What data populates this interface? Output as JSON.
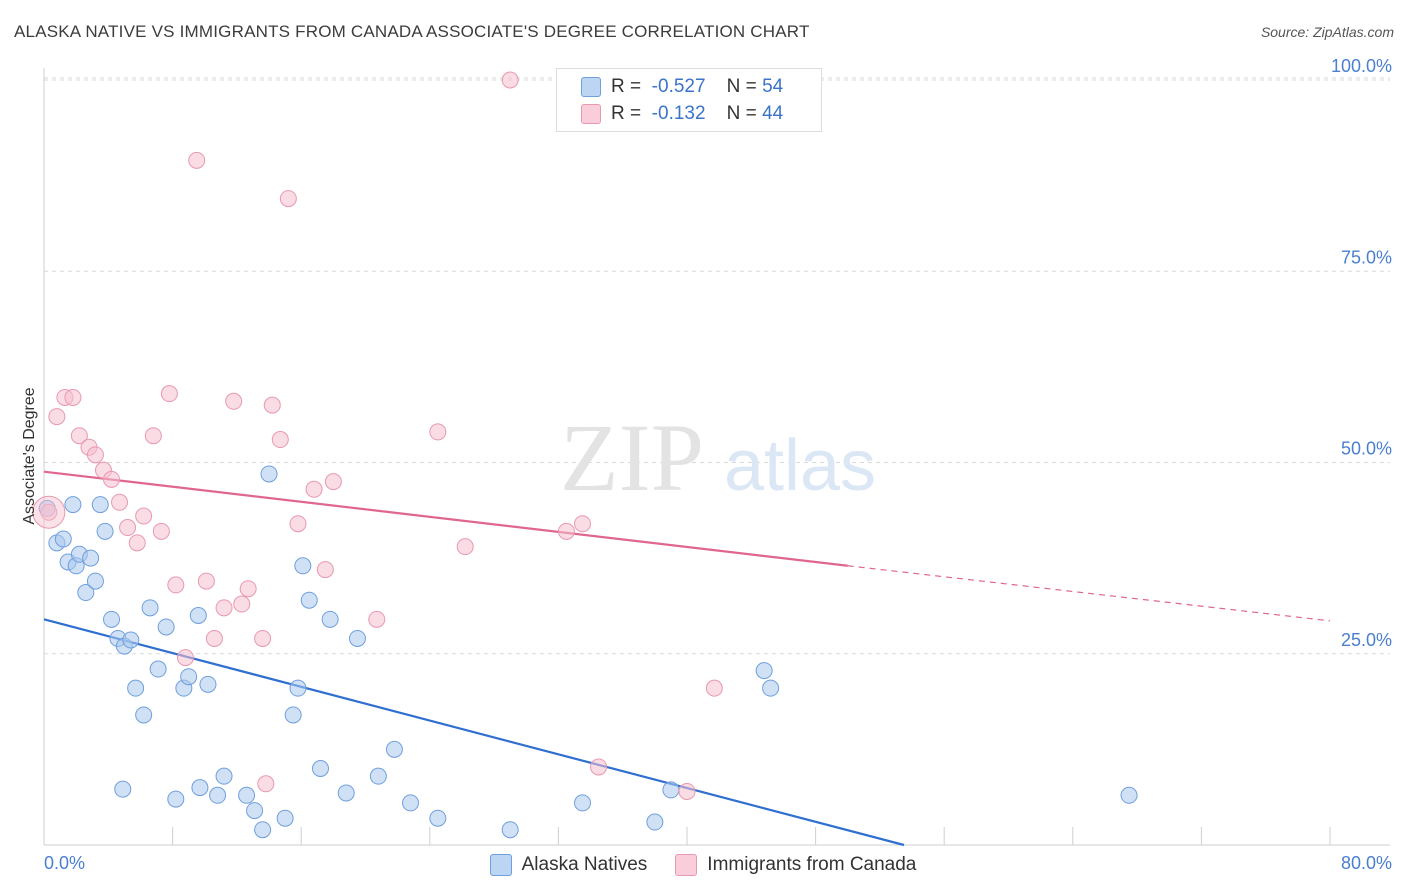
{
  "header": {
    "title": "ALASKA NATIVE VS IMMIGRANTS FROM CANADA ASSOCIATE'S DEGREE CORRELATION CHART",
    "source": "Source: ZipAtlas.com"
  },
  "watermark": {
    "zip": "ZIP",
    "atlas": "atlas"
  },
  "legend_top": {
    "rows": [
      {
        "r_label": "R =",
        "r_value": "-0.527",
        "n_label": "N =",
        "n_value": "54"
      },
      {
        "r_label": "R =",
        "r_value": "-0.132",
        "n_label": "N =",
        "n_value": "44"
      }
    ]
  },
  "colors": {
    "blue_fill": "#a9c8ef",
    "blue_stroke": "#6f9fdc",
    "blue_line": "#2f6fd0",
    "pink_fill": "#f6bfcf",
    "pink_stroke": "#e898b0",
    "pink_line": "#e0668f",
    "tick_color": "#4a7fcf",
    "grid": "#d9d9d9"
  },
  "chart_data": {
    "type": "scatter",
    "title": "ALASKA NATIVE VS IMMIGRANTS FROM CANADA ASSOCIATE'S DEGREE CORRELATION CHART",
    "xlabel": "",
    "ylabel": "Associate's Degree",
    "xlim": [
      0,
      80
    ],
    "ylim": [
      0,
      102
    ],
    "x_tick_labels": [
      "0.0%",
      "80.0%"
    ],
    "y_ticks": [
      25,
      50,
      75,
      100
    ],
    "y_tick_labels": [
      "25.0%",
      "50.0%",
      "75.0%",
      "100.0%"
    ],
    "grid": "horizontal dashed",
    "legend_placement": "bottom-center",
    "series": [
      {
        "name": "Alaska Natives",
        "r": -0.527,
        "n": 54,
        "trend": {
          "x0": 0,
          "y0": 29.5,
          "x1": 53.5,
          "y1": 0,
          "dashed_to": null
        },
        "points": [
          [
            0.2,
            44
          ],
          [
            0.8,
            39.5
          ],
          [
            1.2,
            40
          ],
          [
            1.5,
            37
          ],
          [
            1.8,
            44.5
          ],
          [
            2,
            36.5
          ],
          [
            2.2,
            38
          ],
          [
            2.6,
            33
          ],
          [
            2.9,
            37.5
          ],
          [
            3.2,
            34.5
          ],
          [
            3.5,
            44.5
          ],
          [
            3.8,
            41
          ],
          [
            4.2,
            29.5
          ],
          [
            4.6,
            27
          ],
          [
            5,
            26
          ],
          [
            5.4,
            26.8
          ],
          [
            5.7,
            20.5
          ],
          [
            6.2,
            17
          ],
          [
            6.6,
            31
          ],
          [
            7.1,
            23
          ],
          [
            7.6,
            28.5
          ],
          [
            8.2,
            6
          ],
          [
            8.7,
            20.5
          ],
          [
            9,
            22
          ],
          [
            9.6,
            30
          ],
          [
            10.2,
            21
          ],
          [
            9.7,
            7.5
          ],
          [
            10.8,
            6.5
          ],
          [
            11.2,
            9
          ],
          [
            12.6,
            6.5
          ],
          [
            13.1,
            4.5
          ],
          [
            13.6,
            2
          ],
          [
            14,
            48.5
          ],
          [
            15,
            3.5
          ],
          [
            15.5,
            17
          ],
          [
            15.8,
            20.5
          ],
          [
            16.1,
            36.5
          ],
          [
            16.5,
            32
          ],
          [
            17.2,
            10
          ],
          [
            17.8,
            29.5
          ],
          [
            18.8,
            6.8
          ],
          [
            19.5,
            27
          ],
          [
            20.8,
            9
          ],
          [
            21.8,
            12.5
          ],
          [
            22.8,
            5.5
          ],
          [
            24.5,
            3.5
          ],
          [
            29,
            2
          ],
          [
            33.5,
            5.5
          ],
          [
            38,
            3
          ],
          [
            39,
            7.2
          ],
          [
            44.8,
            22.8
          ],
          [
            45.2,
            20.5
          ],
          [
            67.5,
            6.5
          ],
          [
            4.9,
            7.3
          ]
        ]
      },
      {
        "name": "Immigrants from Canada",
        "r": -0.132,
        "n": 44,
        "trend": {
          "x0": 0,
          "y0": 48.8,
          "x1": 50,
          "y1": 36.5,
          "dashed_to": [
            80,
            29.3
          ]
        },
        "points": [
          [
            0.3,
            43.5
          ],
          [
            0.8,
            56
          ],
          [
            1.3,
            58.5
          ],
          [
            1.8,
            58.5
          ],
          [
            2.2,
            53.5
          ],
          [
            2.8,
            52
          ],
          [
            3.2,
            51
          ],
          [
            3.7,
            49
          ],
          [
            4.2,
            47.8
          ],
          [
            4.7,
            44.8
          ],
          [
            5.2,
            41.5
          ],
          [
            5.8,
            39.5
          ],
          [
            6.2,
            43
          ],
          [
            6.8,
            53.5
          ],
          [
            7.3,
            41
          ],
          [
            7.8,
            59
          ],
          [
            8.2,
            34
          ],
          [
            8.8,
            24.5
          ],
          [
            9.5,
            89.5
          ],
          [
            10.1,
            34.5
          ],
          [
            10.6,
            27
          ],
          [
            11.2,
            31
          ],
          [
            11.8,
            58
          ],
          [
            12.3,
            31.5
          ],
          [
            12.7,
            33.5
          ],
          [
            13.6,
            27
          ],
          [
            13.8,
            8
          ],
          [
            14.2,
            57.5
          ],
          [
            14.7,
            53
          ],
          [
            15.2,
            84.5
          ],
          [
            15.8,
            42
          ],
          [
            16.8,
            46.5
          ],
          [
            17.5,
            36
          ],
          [
            18,
            47.5
          ],
          [
            20.7,
            29.5
          ],
          [
            24.5,
            54
          ],
          [
            26.2,
            39
          ],
          [
            29,
            100
          ],
          [
            32.5,
            41
          ],
          [
            33.5,
            42
          ],
          [
            34,
            100
          ],
          [
            34.5,
            10.2
          ],
          [
            40,
            7
          ],
          [
            41.7,
            20.5
          ]
        ]
      }
    ]
  }
}
